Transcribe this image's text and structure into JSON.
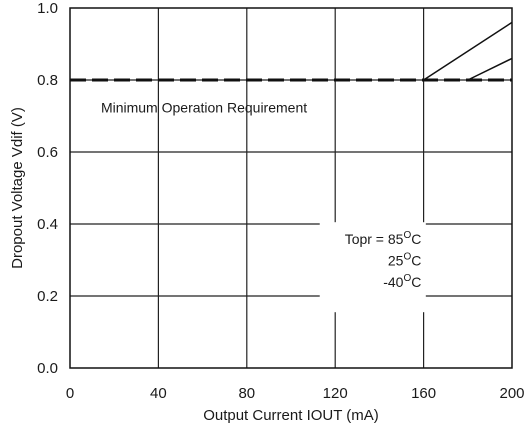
{
  "chart_data": {
    "type": "line",
    "title": "",
    "xlabel": "Output Current IOUT (mA)",
    "ylabel": "Dropout Voltage Vdif (V)",
    "xlim": [
      0,
      200
    ],
    "ylim": [
      0,
      1.0
    ],
    "x_ticks": [
      "0",
      "40",
      "80",
      "120",
      "160",
      "200"
    ],
    "y_ticks": [
      "0.0",
      "0.2",
      "0.4",
      "0.6",
      "0.8",
      "1.0"
    ],
    "grid": true,
    "reference_line": {
      "y": 0.8,
      "style": "dashed",
      "label": "Minimum Operation Requirement"
    },
    "series_labels": {
      "prefix": "Topr = ",
      "items": [
        {
          "value": "85",
          "unit": "C"
        },
        {
          "value": "25",
          "unit": "C"
        },
        {
          "value": "-40",
          "unit": "C"
        }
      ],
      "degree_mark": "O"
    },
    "series": [
      {
        "x": [
          160,
          200
        ],
        "y": [
          0.8,
          0.96
        ]
      },
      {
        "x": [
          180,
          200
        ],
        "y": [
          0.8,
          0.86
        ]
      }
    ]
  }
}
